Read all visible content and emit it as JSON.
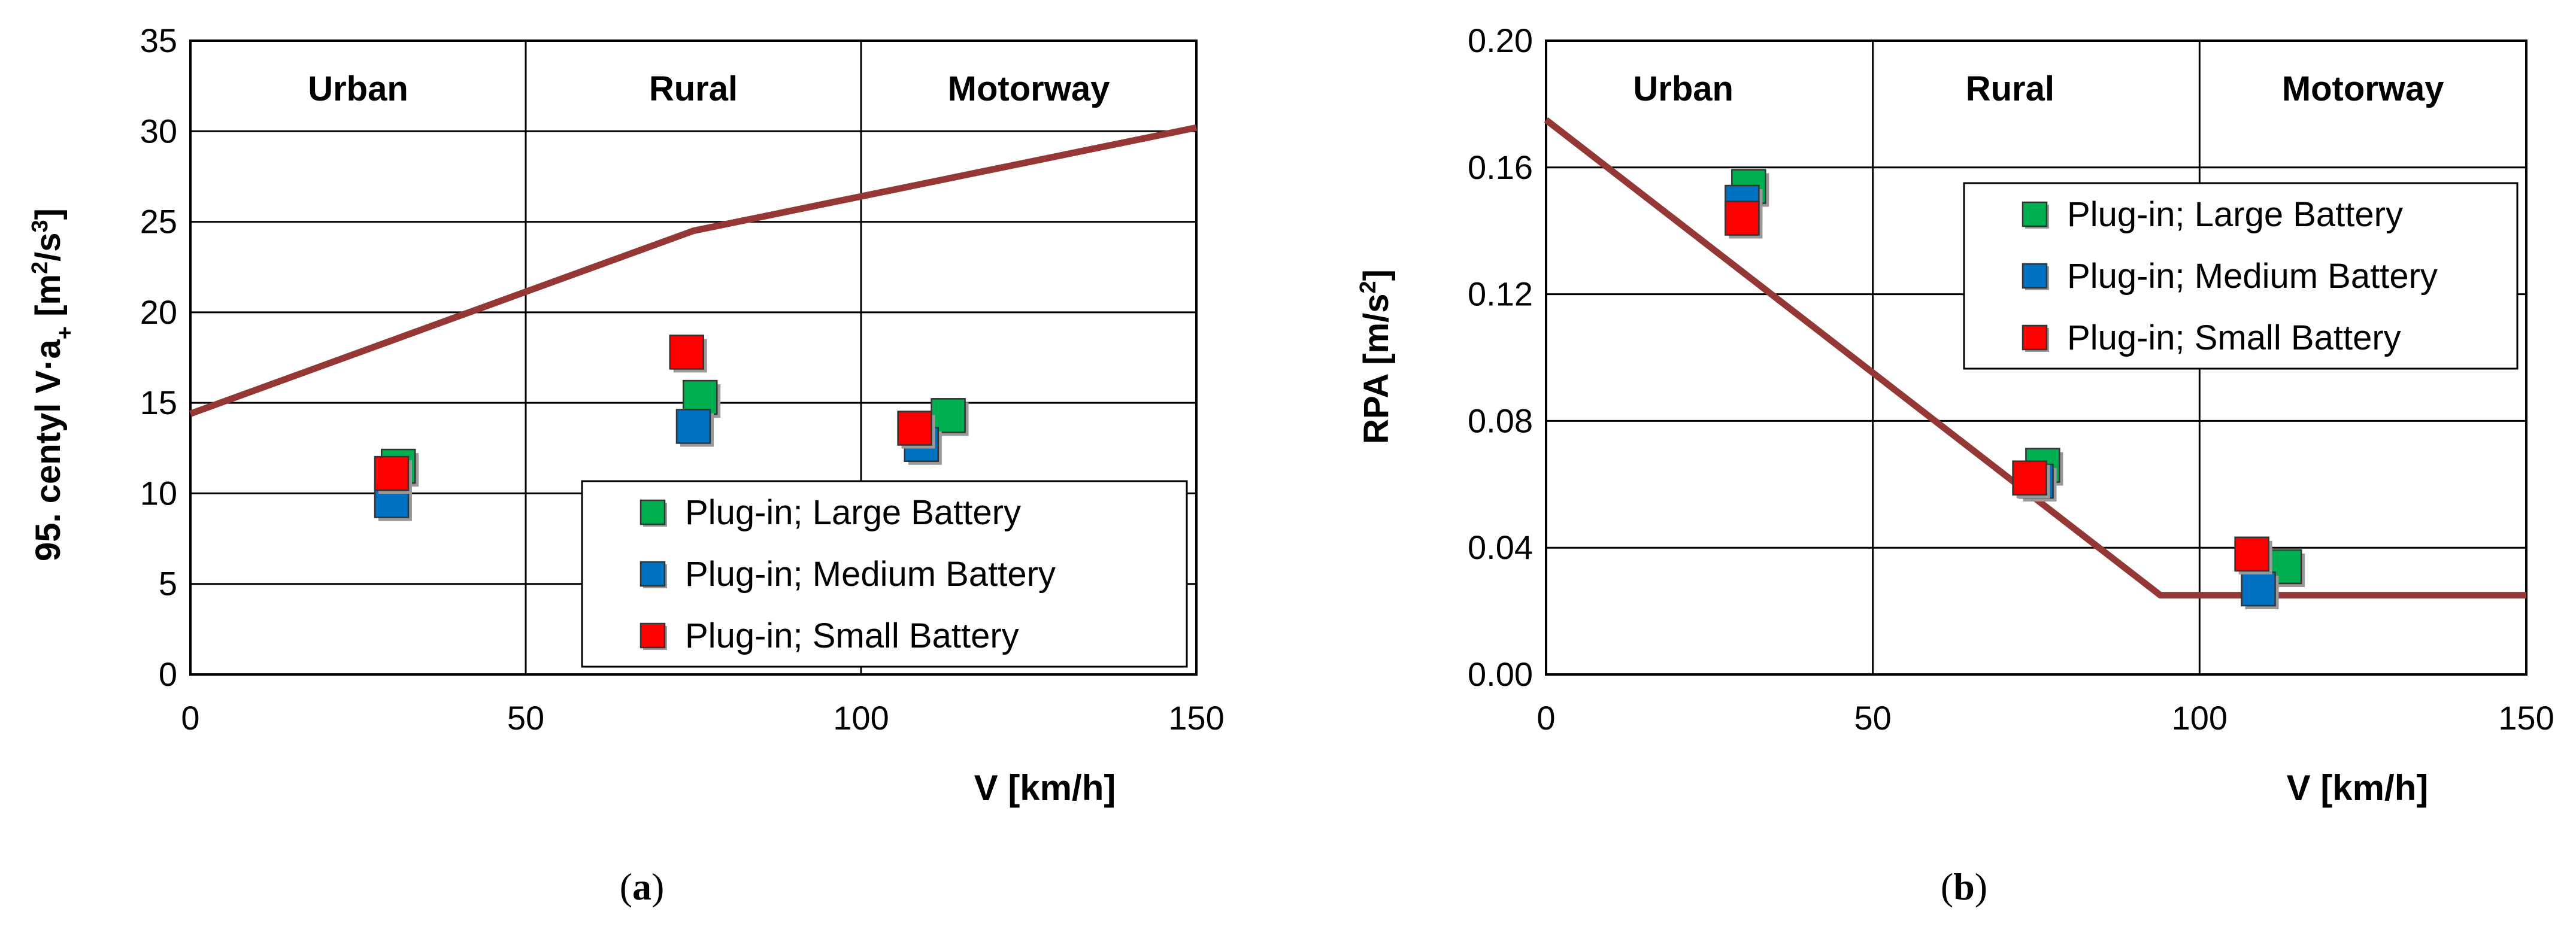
{
  "chart_data": [
    {
      "id": "a",
      "type": "scatter",
      "caption_letter": "a",
      "xlabel": "V [km/h]",
      "ylabel_main": "95. centyl  V·a",
      "ylabel_sub": "+",
      "ylabel_units_open": " [m",
      "ylabel_exp1": "2",
      "ylabel_units_mid": "/s",
      "ylabel_exp2": "3",
      "ylabel_units_close": "]",
      "xlim": [
        0,
        150
      ],
      "ylim": [
        0,
        35
      ],
      "xticks": [
        0,
        50,
        100,
        150
      ],
      "yticks": [
        0,
        5,
        10,
        15,
        20,
        25,
        30,
        35
      ],
      "ytick_labels": [
        "0",
        "5",
        "10",
        "15",
        "20",
        "25",
        "30",
        "35"
      ],
      "regions": [
        {
          "label": "Urban",
          "center": 25
        },
        {
          "label": "Rural",
          "center": 75
        },
        {
          "label": "Motorway",
          "center": 125
        }
      ],
      "limit_line": {
        "x": [
          0,
          75,
          150
        ],
        "y": [
          14.4,
          24.5,
          30.2
        ]
      },
      "series": [
        {
          "name": "Plug-in; Large Battery",
          "color": "#00B050",
          "x": [
            31,
            76,
            113
          ],
          "y": [
            11.5,
            15.3,
            14.3
          ]
        },
        {
          "name": "Plug-in; Medium Battery",
          "color": "#0070C0",
          "x": [
            30,
            75,
            109
          ],
          "y": [
            9.6,
            13.7,
            12.7
          ]
        },
        {
          "name": "Plug-in; Small Battery",
          "color": "#FF0000",
          "x": [
            30,
            74,
            108
          ],
          "y": [
            11.1,
            17.8,
            13.6
          ]
        }
      ]
    },
    {
      "id": "b",
      "type": "scatter",
      "caption_letter": "b",
      "xlabel": "V [km/h]",
      "ylabel_main": "RPA [m/s",
      "ylabel_exp1": "2",
      "ylabel_units_close": "]",
      "xlim": [
        0,
        150
      ],
      "ylim": [
        0,
        0.2
      ],
      "xticks": [
        0,
        50,
        100,
        150
      ],
      "yticks": [
        0,
        0.04,
        0.08,
        0.12,
        0.16,
        0.2
      ],
      "ytick_labels": [
        "0.00",
        "0.04",
        "0.08",
        "0.12",
        "0.16",
        "0.20"
      ],
      "regions": [
        {
          "label": "Urban",
          "center": 21
        },
        {
          "label": "Rural",
          "center": 71
        },
        {
          "label": "Motorway",
          "center": 125
        }
      ],
      "limit_line": {
        "x": [
          0,
          94,
          150
        ],
        "y": [
          0.175,
          0.025,
          0.025
        ]
      },
      "series": [
        {
          "name": "Plug-in; Large Battery",
          "color": "#00B050",
          "x": [
            31,
            76,
            113
          ],
          "y": [
            0.154,
            0.066,
            0.034
          ]
        },
        {
          "name": "Plug-in; Medium Battery",
          "color": "#0070C0",
          "x": [
            30,
            75,
            109
          ],
          "y": [
            0.149,
            0.061,
            0.027
          ]
        },
        {
          "name": "Plug-in; Small Battery",
          "color": "#FF0000",
          "x": [
            30,
            74,
            108
          ],
          "y": [
            0.144,
            0.062,
            0.038
          ]
        }
      ]
    }
  ]
}
